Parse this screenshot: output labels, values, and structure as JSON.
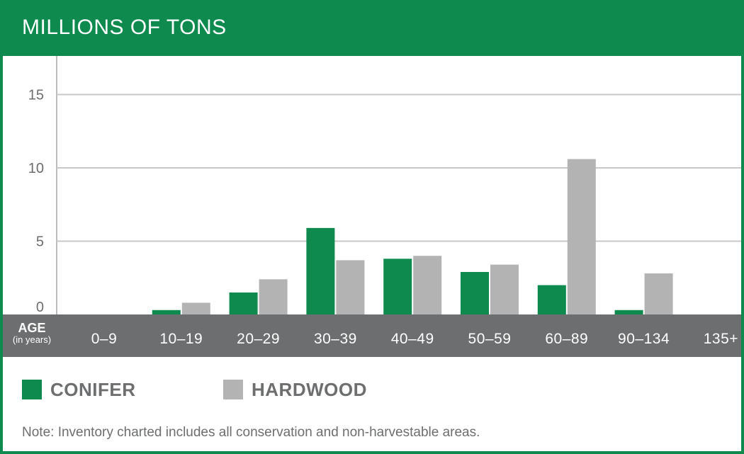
{
  "header": {
    "title": "MILLIONS OF TONS"
  },
  "colors": {
    "conifer": "#0e8a4f",
    "hardwood": "#b3b3b3",
    "band": "#6d6e6f",
    "text": "#6d6e6f"
  },
  "x_axis": {
    "title": "AGE",
    "subtitle": "(in years)"
  },
  "legend": {
    "conifer_label": "CONIFER",
    "hardwood_label": "HARDWOOD"
  },
  "note": "Note: Inventory charted includes all conservation and non-harvestable areas.",
  "chart_data": {
    "type": "bar",
    "categories": [
      "0–9",
      "10–19",
      "20–29",
      "30–39",
      "40–49",
      "50–59",
      "60–89",
      "90–134",
      "135+"
    ],
    "series": [
      {
        "name": "CONIFER",
        "values": [
          0,
          0.3,
          1.5,
          5.9,
          3.8,
          2.9,
          2.0,
          0.3,
          0
        ]
      },
      {
        "name": "HARDWOOD",
        "values": [
          0,
          0.8,
          2.4,
          3.7,
          4.0,
          3.4,
          10.6,
          2.8,
          0
        ]
      }
    ],
    "title": "MILLIONS OF TONS",
    "xlabel": "AGE (in years)",
    "ylabel": "",
    "yticks": [
      0,
      5,
      10,
      15
    ],
    "ylim": [
      0,
      17.5
    ],
    "grid": true,
    "legend_position": "bottom-left"
  }
}
